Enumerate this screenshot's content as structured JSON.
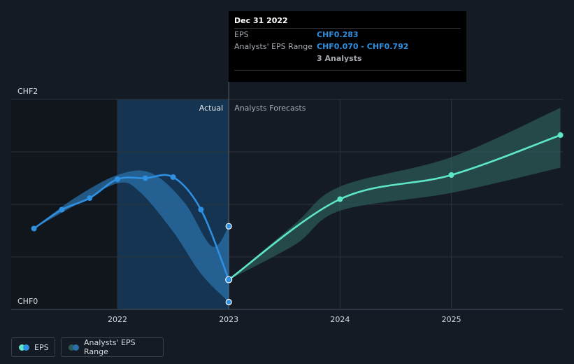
{
  "chart_data": {
    "type": "line",
    "y_tick_labels": [
      "CHF2",
      "CHF0"
    ],
    "x_tick_labels": [
      "2022",
      "2023",
      "2024",
      "2025"
    ],
    "ylim": [
      0,
      2
    ],
    "divider_labels": {
      "actual": "Actual",
      "forecast": "Analysts Forecasts"
    },
    "series": [
      {
        "name": "EPS",
        "kind": "actual",
        "color": "#2f8fe0",
        "points": [
          {
            "x": 2021.25,
            "y": 0.77
          },
          {
            "x": 2021.5,
            "y": 0.95
          },
          {
            "x": 2021.75,
            "y": 1.06
          },
          {
            "x": 2022.0,
            "y": 1.24
          },
          {
            "x": 2022.25,
            "y": 1.25
          },
          {
            "x": 2022.5,
            "y": 1.26
          },
          {
            "x": 2022.75,
            "y": 0.95
          },
          {
            "x": 2023.0,
            "y": 0.283
          }
        ]
      },
      {
        "name": "EPS",
        "kind": "forecast",
        "color": "#5ee6c8",
        "points": [
          {
            "x": 2023.0,
            "y": 0.283
          },
          {
            "x": 2024.0,
            "y": 1.05
          },
          {
            "x": 2025.0,
            "y": 1.28
          },
          {
            "x": 2025.98,
            "y": 1.66
          }
        ]
      }
    ],
    "range_actual": {
      "name": "Analysts' EPS Range",
      "color": "#2a6fa8",
      "upper": [
        {
          "x": 2021.25,
          "y": 0.77
        },
        {
          "x": 2021.6,
          "y": 1.05
        },
        {
          "x": 2022.0,
          "y": 1.28
        },
        {
          "x": 2022.3,
          "y": 1.3
        },
        {
          "x": 2022.6,
          "y": 1.02
        },
        {
          "x": 2022.85,
          "y": 0.6
        },
        {
          "x": 2023.0,
          "y": 0.792
        }
      ],
      "lower": [
        {
          "x": 2023.0,
          "y": 0.07
        },
        {
          "x": 2022.75,
          "y": 0.34
        },
        {
          "x": 2022.5,
          "y": 0.74
        },
        {
          "x": 2022.2,
          "y": 1.12
        },
        {
          "x": 2022.0,
          "y": 1.2
        },
        {
          "x": 2021.6,
          "y": 0.98
        },
        {
          "x": 2021.25,
          "y": 0.77
        }
      ],
      "markers": [
        {
          "x": 2023.0,
          "y": 0.792
        },
        {
          "x": 2023.0,
          "y": 0.07
        }
      ]
    },
    "range_forecast": {
      "name": "Analysts' EPS Range",
      "color": "#2c5c5a",
      "upper": [
        {
          "x": 2023.0,
          "y": 0.283
        },
        {
          "x": 2023.6,
          "y": 0.82
        },
        {
          "x": 2024.0,
          "y": 1.17
        },
        {
          "x": 2025.0,
          "y": 1.45
        },
        {
          "x": 2025.98,
          "y": 1.92
        }
      ],
      "lower": [
        {
          "x": 2025.98,
          "y": 1.35
        },
        {
          "x": 2025.0,
          "y": 1.11
        },
        {
          "x": 2024.0,
          "y": 0.94
        },
        {
          "x": 2023.6,
          "y": 0.62
        },
        {
          "x": 2023.0,
          "y": 0.283
        }
      ]
    },
    "grid": true,
    "highlight_period": {
      "from": 2022.0,
      "to": 2023.0,
      "color": "#14385a"
    },
    "past_period": {
      "from": 2021.0,
      "to": 2022.0,
      "color": "#11161d"
    }
  },
  "tooltip": {
    "date": "Dec 31 2022",
    "eps_label": "EPS",
    "eps_value": "CHF0.283",
    "range_label": "Analysts' EPS Range",
    "range_value": "CHF0.070 - CHF0.792",
    "analysts": "3 Analysts"
  },
  "legend": {
    "eps_label": "EPS",
    "range_label": "Analysts' EPS Range"
  }
}
